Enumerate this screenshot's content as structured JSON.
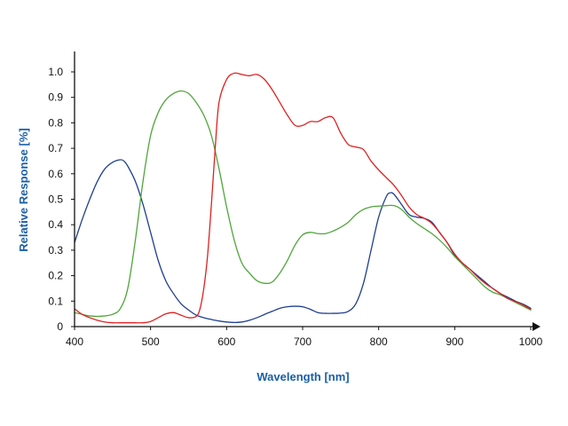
{
  "chart_data": {
    "type": "line",
    "title": "",
    "xlabel": "Wavelength [nm]",
    "ylabel": "Relative Response [%]",
    "xlim": [
      400,
      1000
    ],
    "ylim": [
      0,
      1.1
    ],
    "x_ticks": [
      400,
      500,
      600,
      700,
      800,
      900,
      1000
    ],
    "y_ticks": [
      0,
      0.1,
      0.2,
      0.3,
      0.4,
      0.5,
      0.6,
      0.7,
      0.8,
      0.9,
      1.0
    ],
    "y_tick_labels": [
      "0",
      "0.1",
      "0.2",
      "0.3",
      "0.4",
      "0.5",
      "0.6",
      "0.7",
      "0.8",
      "0.9",
      "1.0"
    ],
    "grid": false,
    "legend": "none",
    "series": [
      {
        "color": "#1f3f8f",
        "points": [
          [
            400,
            0.33
          ],
          [
            410,
            0.42
          ],
          [
            420,
            0.5
          ],
          [
            430,
            0.57
          ],
          [
            440,
            0.62
          ],
          [
            450,
            0.645
          ],
          [
            460,
            0.655
          ],
          [
            465,
            0.65
          ],
          [
            470,
            0.63
          ],
          [
            480,
            0.57
          ],
          [
            490,
            0.48
          ],
          [
            500,
            0.37
          ],
          [
            510,
            0.26
          ],
          [
            520,
            0.18
          ],
          [
            530,
            0.13
          ],
          [
            540,
            0.09
          ],
          [
            550,
            0.065
          ],
          [
            560,
            0.045
          ],
          [
            570,
            0.035
          ],
          [
            580,
            0.028
          ],
          [
            590,
            0.022
          ],
          [
            600,
            0.018
          ],
          [
            610,
            0.016
          ],
          [
            620,
            0.018
          ],
          [
            630,
            0.025
          ],
          [
            640,
            0.035
          ],
          [
            650,
            0.048
          ],
          [
            660,
            0.06
          ],
          [
            670,
            0.072
          ],
          [
            680,
            0.078
          ],
          [
            690,
            0.08
          ],
          [
            700,
            0.078
          ],
          [
            710,
            0.068
          ],
          [
            720,
            0.055
          ],
          [
            730,
            0.052
          ],
          [
            740,
            0.052
          ],
          [
            750,
            0.053
          ],
          [
            760,
            0.06
          ],
          [
            770,
            0.09
          ],
          [
            780,
            0.17
          ],
          [
            790,
            0.3
          ],
          [
            800,
            0.43
          ],
          [
            810,
            0.51
          ],
          [
            815,
            0.525
          ],
          [
            820,
            0.52
          ],
          [
            830,
            0.48
          ],
          [
            840,
            0.44
          ],
          [
            850,
            0.43
          ],
          [
            860,
            0.425
          ],
          [
            870,
            0.41
          ],
          [
            880,
            0.37
          ],
          [
            890,
            0.33
          ],
          [
            900,
            0.28
          ],
          [
            910,
            0.25
          ],
          [
            920,
            0.225
          ],
          [
            930,
            0.2
          ],
          [
            940,
            0.175
          ],
          [
            950,
            0.15
          ],
          [
            960,
            0.13
          ],
          [
            970,
            0.115
          ],
          [
            980,
            0.1
          ],
          [
            990,
            0.088
          ],
          [
            1000,
            0.072
          ]
        ]
      },
      {
        "color": "#4fa63a",
        "points": [
          [
            400,
            0.055
          ],
          [
            410,
            0.048
          ],
          [
            420,
            0.042
          ],
          [
            430,
            0.04
          ],
          [
            440,
            0.042
          ],
          [
            450,
            0.048
          ],
          [
            460,
            0.07
          ],
          [
            470,
            0.15
          ],
          [
            480,
            0.34
          ],
          [
            490,
            0.57
          ],
          [
            500,
            0.75
          ],
          [
            510,
            0.84
          ],
          [
            520,
            0.89
          ],
          [
            530,
            0.915
          ],
          [
            540,
            0.925
          ],
          [
            550,
            0.915
          ],
          [
            560,
            0.88
          ],
          [
            570,
            0.83
          ],
          [
            580,
            0.75
          ],
          [
            590,
            0.62
          ],
          [
            600,
            0.47
          ],
          [
            610,
            0.34
          ],
          [
            620,
            0.25
          ],
          [
            630,
            0.21
          ],
          [
            640,
            0.18
          ],
          [
            650,
            0.17
          ],
          [
            660,
            0.175
          ],
          [
            670,
            0.21
          ],
          [
            680,
            0.26
          ],
          [
            690,
            0.32
          ],
          [
            700,
            0.36
          ],
          [
            710,
            0.37
          ],
          [
            720,
            0.365
          ],
          [
            730,
            0.365
          ],
          [
            740,
            0.375
          ],
          [
            750,
            0.39
          ],
          [
            760,
            0.41
          ],
          [
            770,
            0.44
          ],
          [
            780,
            0.46
          ],
          [
            790,
            0.47
          ],
          [
            800,
            0.473
          ],
          [
            810,
            0.475
          ],
          [
            820,
            0.475
          ],
          [
            830,
            0.46
          ],
          [
            840,
            0.43
          ],
          [
            850,
            0.405
          ],
          [
            860,
            0.385
          ],
          [
            870,
            0.365
          ],
          [
            880,
            0.34
          ],
          [
            890,
            0.31
          ],
          [
            900,
            0.275
          ],
          [
            910,
            0.245
          ],
          [
            920,
            0.215
          ],
          [
            930,
            0.185
          ],
          [
            940,
            0.155
          ],
          [
            950,
            0.135
          ],
          [
            960,
            0.125
          ],
          [
            970,
            0.11
          ],
          [
            980,
            0.095
          ],
          [
            990,
            0.08
          ],
          [
            1000,
            0.065
          ]
        ]
      },
      {
        "color": "#e02020",
        "points": [
          [
            400,
            0.07
          ],
          [
            410,
            0.048
          ],
          [
            420,
            0.035
          ],
          [
            430,
            0.025
          ],
          [
            440,
            0.018
          ],
          [
            450,
            0.015
          ],
          [
            460,
            0.015
          ],
          [
            470,
            0.015
          ],
          [
            480,
            0.015
          ],
          [
            490,
            0.015
          ],
          [
            500,
            0.02
          ],
          [
            510,
            0.035
          ],
          [
            520,
            0.05
          ],
          [
            530,
            0.055
          ],
          [
            540,
            0.045
          ],
          [
            550,
            0.035
          ],
          [
            560,
            0.04
          ],
          [
            565,
            0.07
          ],
          [
            570,
            0.15
          ],
          [
            575,
            0.28
          ],
          [
            580,
            0.48
          ],
          [
            585,
            0.7
          ],
          [
            590,
            0.88
          ],
          [
            600,
            0.97
          ],
          [
            610,
            0.995
          ],
          [
            620,
            0.99
          ],
          [
            630,
            0.985
          ],
          [
            640,
            0.99
          ],
          [
            650,
            0.97
          ],
          [
            660,
            0.93
          ],
          [
            670,
            0.88
          ],
          [
            680,
            0.83
          ],
          [
            690,
            0.79
          ],
          [
            700,
            0.79
          ],
          [
            710,
            0.805
          ],
          [
            720,
            0.805
          ],
          [
            730,
            0.82
          ],
          [
            740,
            0.82
          ],
          [
            750,
            0.76
          ],
          [
            760,
            0.715
          ],
          [
            770,
            0.705
          ],
          [
            780,
            0.695
          ],
          [
            790,
            0.65
          ],
          [
            800,
            0.615
          ],
          [
            810,
            0.585
          ],
          [
            820,
            0.555
          ],
          [
            830,
            0.515
          ],
          [
            840,
            0.47
          ],
          [
            850,
            0.44
          ],
          [
            860,
            0.425
          ],
          [
            870,
            0.405
          ],
          [
            880,
            0.37
          ],
          [
            890,
            0.33
          ],
          [
            900,
            0.285
          ],
          [
            910,
            0.25
          ],
          [
            920,
            0.225
          ],
          [
            930,
            0.195
          ],
          [
            940,
            0.17
          ],
          [
            950,
            0.15
          ],
          [
            960,
            0.13
          ],
          [
            970,
            0.11
          ],
          [
            980,
            0.098
          ],
          [
            990,
            0.085
          ],
          [
            1000,
            0.068
          ]
        ]
      }
    ]
  },
  "colors": {
    "axis": "#111111",
    "axis_title": "#1a5fa6"
  }
}
